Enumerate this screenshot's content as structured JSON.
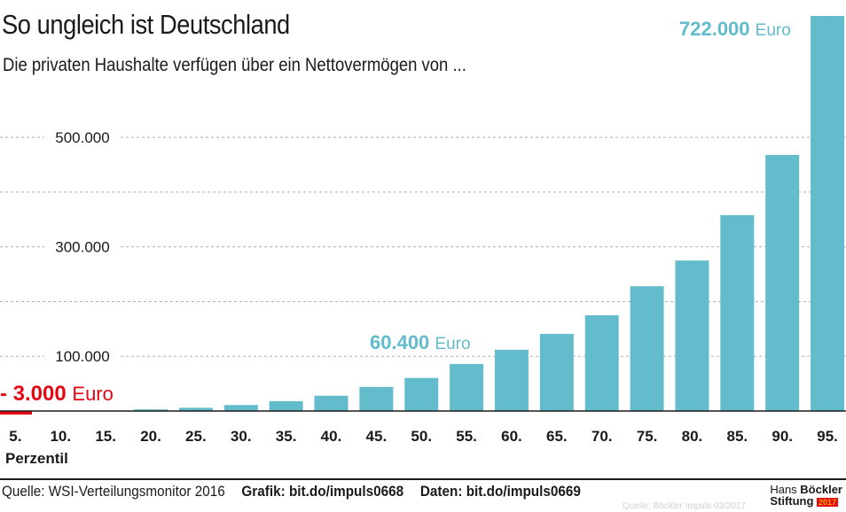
{
  "title": "So ungleich ist Deutschland",
  "subtitle": "Die privaten Haushalte verfügen über ein Nettovermögen von ...",
  "footer": {
    "source": "Quelle: WSI-Verteilungsmonitor 2016",
    "grafik": "Grafik: bit.do/impuls0668",
    "daten": "Daten: bit.do/impuls0669"
  },
  "logo": {
    "line1a": "Hans ",
    "line1b": "Böckler",
    "line2": "Stiftung",
    "year": "2017"
  },
  "watermark": "Quelle: Böckler Impuls 03/2017",
  "colors": {
    "bar": "#62bccb",
    "negative": "#e30613",
    "grid": "#b0b0b0"
  },
  "chart_data": {
    "type": "bar",
    "xlabel": "Perzentil",
    "categories": [
      "5.",
      "10.",
      "15.",
      "20.",
      "25.",
      "30.",
      "35.",
      "40.",
      "45.",
      "50.",
      "55.",
      "60.",
      "65.",
      "70.",
      "75.",
      "80.",
      "85.",
      "90.",
      "95."
    ],
    "values": [
      -3000,
      0,
      0,
      3000,
      6000,
      11000,
      18000,
      28000,
      44000,
      60400,
      86000,
      112000,
      141000,
      175000,
      228000,
      275000,
      358000,
      468000,
      722000
    ],
    "ylim": [
      0,
      722000
    ],
    "yticks": [
      100000,
      200000,
      300000,
      400000,
      500000
    ],
    "ytick_labels": [
      "100.000",
      "",
      "300.000",
      "",
      "500.000"
    ],
    "grid": true,
    "annotations": [
      {
        "category": "5.",
        "value": "- 3.000",
        "unit": "Euro"
      },
      {
        "category": "50.",
        "value": "60.400",
        "unit": "Euro"
      },
      {
        "category": "95.",
        "value": "722.000",
        "unit": "Euro"
      }
    ]
  }
}
